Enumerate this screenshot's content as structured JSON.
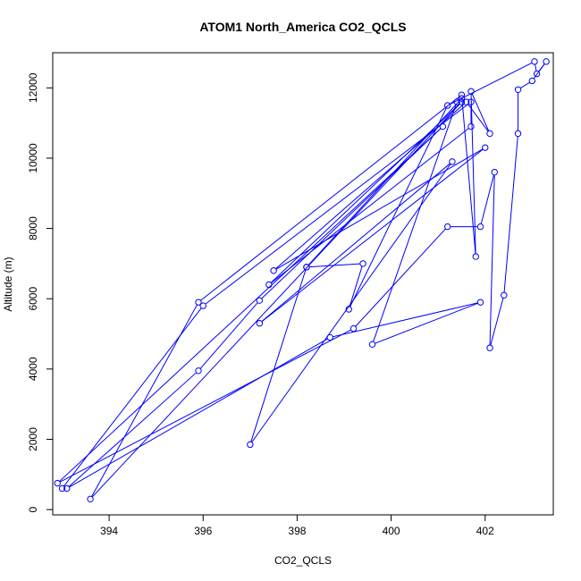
{
  "chart_data": {
    "type": "line",
    "title": "ATOM1 North_America CO2_QCLS",
    "xlabel": "CO2_QCLS",
    "ylabel": "Altitude (m)",
    "xlim": [
      392.8,
      403.45
    ],
    "ylim": [
      -150,
      13000
    ],
    "xticks": [
      394,
      396,
      398,
      400,
      402
    ],
    "yticks": [
      0,
      2000,
      4000,
      6000,
      8000,
      10000,
      12000
    ],
    "grid": false,
    "legend": "none",
    "series": [
      {
        "color": "#0000ff",
        "points": [
          [
            393.0,
            600
          ],
          [
            396.0,
            5800
          ],
          [
            401.7,
            11600
          ],
          [
            401.7,
            10900
          ],
          [
            397.4,
            6400
          ],
          [
            401.5,
            11600
          ],
          [
            393.6,
            300
          ],
          [
            395.9,
            5900
          ],
          [
            401.5,
            11800
          ],
          [
            401.8,
            7200
          ],
          [
            401.7,
            11900
          ],
          [
            402.1,
            10700
          ],
          [
            401.6,
            11600
          ],
          [
            397.5,
            6800
          ],
          [
            402.0,
            10300
          ],
          [
            397.2,
            5300
          ],
          [
            401.3,
            9900
          ],
          [
            397.0,
            1850
          ],
          [
            398.2,
            6900
          ],
          [
            401.5,
            11700
          ],
          [
            401.4,
            11600
          ],
          [
            399.6,
            4700
          ],
          [
            401.9,
            5900
          ],
          [
            398.7,
            4900
          ],
          [
            393.1,
            600
          ],
          [
            395.9,
            3950
          ],
          [
            397.2,
            5950
          ],
          [
            401.1,
            10900
          ],
          [
            392.9,
            750
          ],
          [
            399.2,
            5150
          ],
          [
            401.2,
            8050
          ],
          [
            401.9,
            8050
          ],
          [
            402.2,
            9600
          ],
          [
            402.1,
            4600
          ],
          [
            402.4,
            6100
          ],
          [
            402.7,
            10700
          ],
          [
            402.7,
            11950
          ],
          [
            403.0,
            12200
          ],
          [
            403.3,
            12750
          ],
          [
            403.1,
            12400
          ],
          [
            403.05,
            12750
          ],
          [
            401.2,
            11500
          ],
          [
            399.1,
            5700
          ],
          [
            399.4,
            7000
          ],
          [
            398.2,
            6900
          ]
        ]
      }
    ]
  }
}
